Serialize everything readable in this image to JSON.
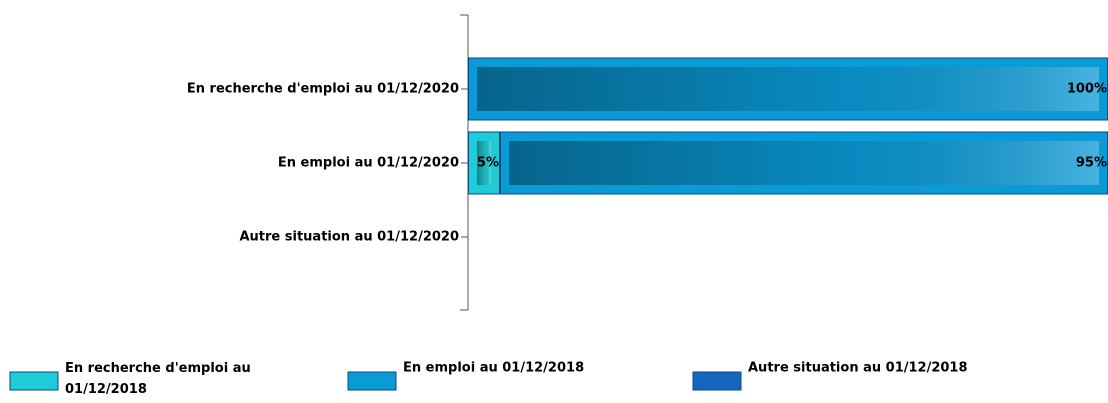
{
  "chart_data": {
    "type": "stacked-bar-horizontal",
    "categories": [
      "En recherche d'emploi au 01/12/2020",
      "En emploi au 01/12/2020",
      "Autre situation au 01/12/2020"
    ],
    "series": [
      {
        "name": "En recherche d'emploi au 01/12/2018",
        "color": "#1ecbd6",
        "values": [
          0,
          5,
          0
        ],
        "value_labels": [
          null,
          "5%",
          null
        ]
      },
      {
        "name": "En emploi au 01/12/2018",
        "color": "#0a9ad6",
        "values": [
          100,
          95,
          0
        ],
        "value_labels": [
          "100%",
          "95%",
          null
        ]
      },
      {
        "name": "Autre situation au 01/12/2018",
        "color": "#1565c0",
        "values": [
          0,
          0,
          0
        ],
        "value_labels": [
          null,
          null,
          null
        ]
      }
    ]
  }
}
